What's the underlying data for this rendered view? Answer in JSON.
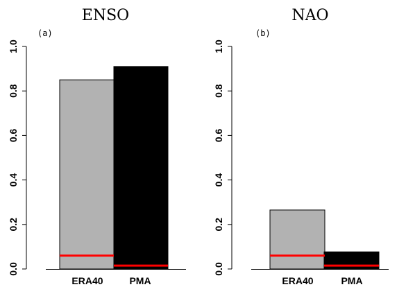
{
  "chart_data": [
    {
      "type": "bar",
      "title": "ENSO",
      "panel_label": "(a)",
      "categories": [
        "ERA40",
        "PMA"
      ],
      "values": [
        0.85,
        0.91
      ],
      "bar_colors": [
        "#b2b2b2",
        "#000000"
      ],
      "reference_values": [
        0.06,
        0.015
      ],
      "reference_color": "#ff0000",
      "ylim": [
        0,
        1.0
      ],
      "yticks": [
        0.0,
        0.2,
        0.4,
        0.6,
        0.8,
        1.0
      ],
      "ytick_labels": [
        "0.0",
        "0.2",
        "0.4",
        "0.6",
        "0.8",
        "1.0"
      ],
      "xlabel": "",
      "ylabel": "",
      "grid": false,
      "legend": "none"
    },
    {
      "type": "bar",
      "title": "NAO",
      "panel_label": "(b)",
      "categories": [
        "ERA40",
        "PMA"
      ],
      "values": [
        0.265,
        0.077
      ],
      "bar_colors": [
        "#b2b2b2",
        "#000000"
      ],
      "reference_values": [
        0.06,
        0.015
      ],
      "reference_color": "#ff0000",
      "ylim": [
        0,
        1.0
      ],
      "yticks": [
        0.0,
        0.2,
        0.4,
        0.6,
        0.8,
        1.0
      ],
      "ytick_labels": [
        "0.0",
        "0.2",
        "0.4",
        "0.6",
        "0.8",
        "1.0"
      ],
      "xlabel": "",
      "ylabel": "",
      "grid": false,
      "legend": "none"
    }
  ]
}
